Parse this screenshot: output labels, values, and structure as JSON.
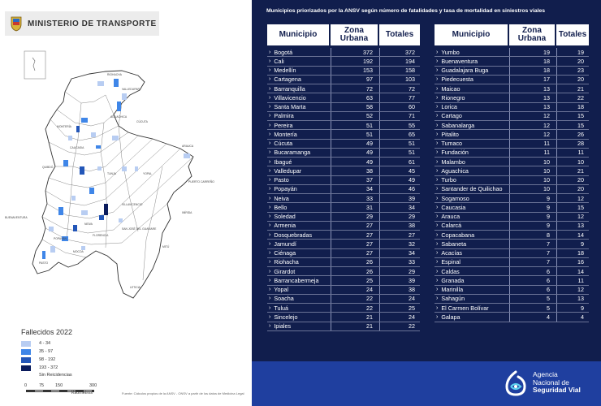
{
  "header": {
    "ministry": "MINISTERIO DE TRANSPORTE"
  },
  "legend": {
    "title": "Fallecidos 2022",
    "items": [
      {
        "label": "4 - 34",
        "color": "#b8cdf2"
      },
      {
        "label": "35 - 97",
        "color": "#3f86e8"
      },
      {
        "label": "98 - 192",
        "color": "#2356b8"
      },
      {
        "label": "193 - 372",
        "color": "#0a1b5c"
      }
    ],
    "no_incidents": "Sin Reicidencias"
  },
  "scale": {
    "ticks": [
      "0",
      "75",
      "150",
      "300"
    ],
    "unit": "Kilometros"
  },
  "source": "Fuente: Cálculos propios de la ANSV - ONSV a partir de los datos de Medicina Legal",
  "table": {
    "title": "Municipios priorizados por la ANSV según número de fatalidades y tasa de mortalidad en siniestros viales",
    "headers": {
      "municipio": "Municipio",
      "zona_urbana_1": "Zona",
      "zona_urbana_2": "Urbana",
      "totales": "Totales"
    },
    "left_rows": [
      {
        "name": "Bogotá",
        "zona": "372",
        "total": "372"
      },
      {
        "name": "Cali",
        "zona": "192",
        "total": "194"
      },
      {
        "name": "Medellín",
        "zona": "153",
        "total": "158"
      },
      {
        "name": "Cartagena",
        "zona": "97",
        "total": "103"
      },
      {
        "name": "Barranquilla",
        "zona": "72",
        "total": "72"
      },
      {
        "name": "Villavicencio",
        "zona": "63",
        "total": "77"
      },
      {
        "name": "Santa Marta",
        "zona": "58",
        "total": "60"
      },
      {
        "name": "Palmira",
        "zona": "52",
        "total": "71"
      },
      {
        "name": "Pereira",
        "zona": "51",
        "total": "55"
      },
      {
        "name": "Montería",
        "zona": "51",
        "total": "65"
      },
      {
        "name": "Cúcuta",
        "zona": "49",
        "total": "51"
      },
      {
        "name": "Bucaramanga",
        "zona": "49",
        "total": "51"
      },
      {
        "name": "Ibagué",
        "zona": "49",
        "total": "61"
      },
      {
        "name": "Valledupar",
        "zona": "38",
        "total": "45"
      },
      {
        "name": "Pasto",
        "zona": "37",
        "total": "49"
      },
      {
        "name": "Popayán",
        "zona": "34",
        "total": "46"
      },
      {
        "name": "Neiva",
        "zona": "33",
        "total": "39"
      },
      {
        "name": "Bello",
        "zona": "31",
        "total": "34"
      },
      {
        "name": "Soledad",
        "zona": "29",
        "total": "29"
      },
      {
        "name": "Armenia",
        "zona": "27",
        "total": "38"
      },
      {
        "name": "Dosquebradas",
        "zona": "27",
        "total": "27"
      },
      {
        "name": "Jamundí",
        "zona": "27",
        "total": "32"
      },
      {
        "name": "Ciénaga",
        "zona": "27",
        "total": "34"
      },
      {
        "name": "Riohacha",
        "zona": "26",
        "total": "33"
      },
      {
        "name": "Girardot",
        "zona": "26",
        "total": "29"
      },
      {
        "name": "Barrancabermeja",
        "zona": "25",
        "total": "39"
      },
      {
        "name": "Yopal",
        "zona": "24",
        "total": "38"
      },
      {
        "name": "Soacha",
        "zona": "22",
        "total": "24"
      },
      {
        "name": "Tuluá",
        "zona": "22",
        "total": "25"
      },
      {
        "name": "Sincelejo",
        "zona": "21",
        "total": "24"
      },
      {
        "name": "Ipiales",
        "zona": "21",
        "total": "22"
      }
    ],
    "right_rows": [
      {
        "name": "Yumbo",
        "zona": "19",
        "total": "19"
      },
      {
        "name": "Buenaventura",
        "zona": "18",
        "total": "20"
      },
      {
        "name": "Guadalajara Buga",
        "zona": "18",
        "total": "23"
      },
      {
        "name": "Piedecuesta",
        "zona": "17",
        "total": "20"
      },
      {
        "name": "Maicao",
        "zona": "13",
        "total": "21"
      },
      {
        "name": "Rionegro",
        "zona": "13",
        "total": "22"
      },
      {
        "name": "Lorica",
        "zona": "13",
        "total": "18"
      },
      {
        "name": "Cartago",
        "zona": "12",
        "total": "15"
      },
      {
        "name": "Sabanalarga",
        "zona": "12",
        "total": "15"
      },
      {
        "name": "Pitalito",
        "zona": "12",
        "total": "26"
      },
      {
        "name": "Tumaco",
        "zona": "11",
        "total": "28"
      },
      {
        "name": "Fundación",
        "zona": "11",
        "total": "11"
      },
      {
        "name": "Malambo",
        "zona": "10",
        "total": "10"
      },
      {
        "name": "Aguachica",
        "zona": "10",
        "total": "21"
      },
      {
        "name": "Turbo",
        "zona": "10",
        "total": "20"
      },
      {
        "name": "Santander de Quilichao",
        "zona": "10",
        "total": "20"
      },
      {
        "name": "Sogamoso",
        "zona": "9",
        "total": "12"
      },
      {
        "name": "Caucasia",
        "zona": "9",
        "total": "15"
      },
      {
        "name": "Arauca",
        "zona": "9",
        "total": "12"
      },
      {
        "name": "Calarcá",
        "zona": "9",
        "total": "13"
      },
      {
        "name": "Copacabana",
        "zona": "8",
        "total": "14"
      },
      {
        "name": "Sabaneta",
        "zona": "7",
        "total": "9"
      },
      {
        "name": "Acacías",
        "zona": "7",
        "total": "18"
      },
      {
        "name": "Espinal",
        "zona": "7",
        "total": "16"
      },
      {
        "name": "Caldas",
        "zona": "6",
        "total": "14"
      },
      {
        "name": "Granada",
        "zona": "6",
        "total": "11"
      },
      {
        "name": "Marinilla",
        "zona": "6",
        "total": "12"
      },
      {
        "name": "Sahagún",
        "zona": "5",
        "total": "13"
      },
      {
        "name": "El Carmen Bolívar",
        "zona": "5",
        "total": "9"
      },
      {
        "name": "Galapa",
        "zona": "4",
        "total": "4"
      }
    ]
  },
  "agency": {
    "line1": "Agencia",
    "line2": "Nacional de",
    "line3": "Seguridad Vial"
  },
  "map_labels": [
    "RIOHACHA",
    "VALLEDUPAR",
    "CÚCUTA",
    "MONTERÍA",
    "ARAUCA",
    "YOPAL",
    "VILLAVICENCIO",
    "BUENAVENTURA",
    "CAUCASIA",
    "AGUACHICA",
    "PUERTO CARREÑO",
    "INÍRIDA",
    "MITÚ",
    "LETICIA",
    "FLORENCIA",
    "MOCOA",
    "SAN JOSÉ DEL GUAVIARE",
    "QUIBDÓ",
    "TUNJA",
    "NEIVA",
    "POPAYÁN",
    "PASTO"
  ]
}
